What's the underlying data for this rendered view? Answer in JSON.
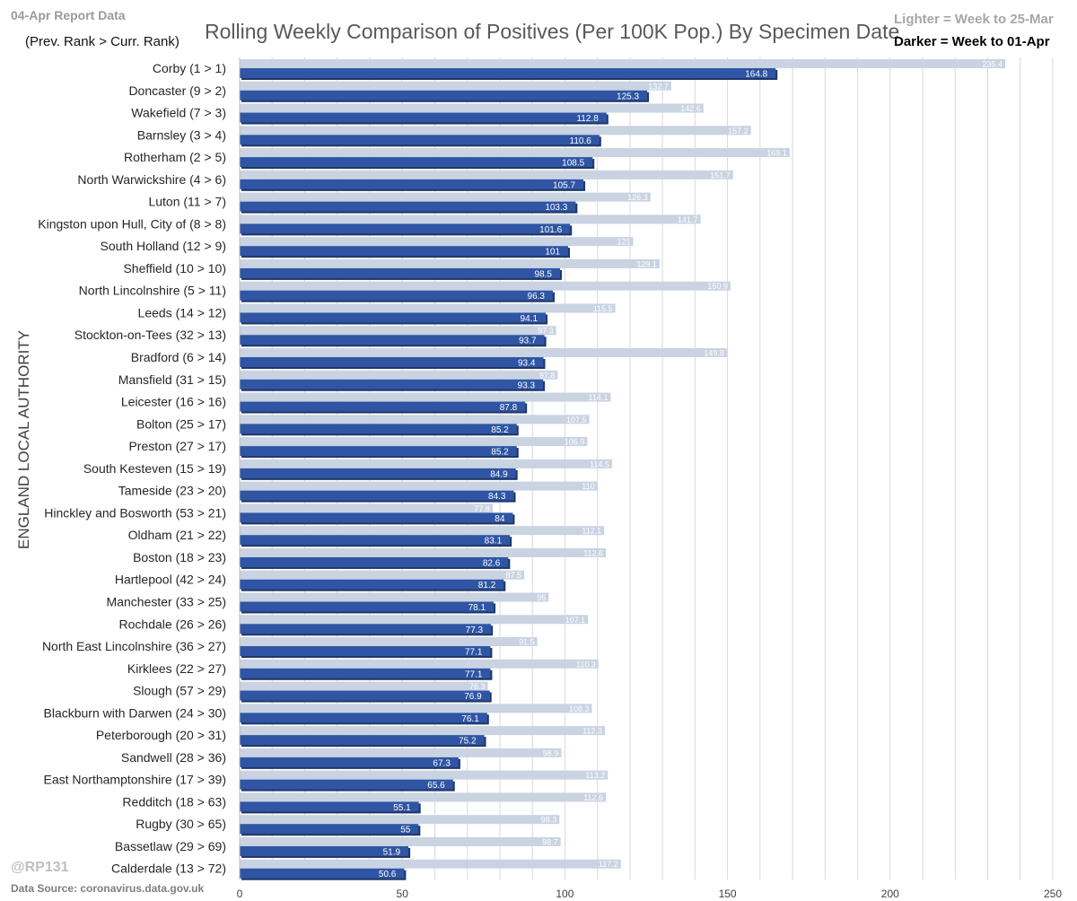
{
  "header": {
    "report_label": "04-Apr Report Data",
    "rank_note": "(Prev. Rank > Curr. Rank)",
    "legend_light": "Lighter = Week to 25-Mar",
    "legend_dark": "Darker = Week to 01-Apr"
  },
  "footer": {
    "watermark": "@RP131",
    "source": "Data Source: coronavirus.data.gov.uk"
  },
  "colors": {
    "light_bar": "#c9d3e2",
    "dark_bar": "#2f55a4",
    "light_label": "#ffffff",
    "dark_label": "#ffffff",
    "grid": "#d9d9d9"
  },
  "chart_data": {
    "type": "bar",
    "orientation": "horizontal",
    "title": "Rolling Weekly Comparison of Positives  (Per 100K Pop.) By Specimen Date",
    "xlabel": "",
    "ylabel": "ENGLAND LOCAL AUTHORITY",
    "xlim": [
      0,
      250
    ],
    "xticks": [
      0,
      50,
      100,
      150,
      200,
      250
    ],
    "grid": true,
    "categories": [
      "Corby (1 > 1)",
      "Doncaster (9 > 2)",
      "Wakefield (7 > 3)",
      "Barnsley (3 > 4)",
      "Rotherham (2 > 5)",
      "North Warwickshire (4 > 6)",
      "Luton (11 > 7)",
      "Kingston upon Hull, City of (8 > 8)",
      "South Holland (12 > 9)",
      "Sheffield (10 > 10)",
      "North Lincolnshire (5 > 11)",
      "Leeds (14 > 12)",
      "Stockton-on-Tees (32 > 13)",
      "Bradford (6 > 14)",
      "Mansfield (31 > 15)",
      "Leicester (16 > 16)",
      "Bolton (25 > 17)",
      "Preston (27 > 17)",
      "South Kesteven (15 > 19)",
      "Tameside (23 > 20)",
      "Hinckley and Bosworth (53 > 21)",
      "Oldham (21 > 22)",
      "Boston (18 > 23)",
      "Hartlepool (42 > 24)",
      "Manchester (33 > 25)",
      "Rochdale (26 > 26)",
      "North East Lincolnshire (36 > 27)",
      "Kirklees (22 > 27)",
      "Slough (57 > 29)",
      "Blackburn with Darwen (24 > 30)",
      "Peterborough (20 > 31)",
      "Sandwell (28 > 36)",
      "East Northamptonshire (17 > 39)",
      "Redditch (18 > 63)",
      "Rugby (30 > 65)",
      "Bassetlaw (29 > 69)",
      "Calderdale (13 > 72)"
    ],
    "series": [
      {
        "name": "Week to 25-Mar",
        "values": [
          235.4,
          132.7,
          142.6,
          157.2,
          169.1,
          151.7,
          126.3,
          141.7,
          121,
          129.1,
          150.9,
          115.5,
          97.3,
          149.8,
          97.8,
          114.1,
          107.5,
          106.9,
          114.5,
          110,
          77.8,
          112.1,
          112.6,
          87.5,
          95,
          107.1,
          91.5,
          110.3,
          76.3,
          108.3,
          112.3,
          98.9,
          113.2,
          112.6,
          98.3,
          98.7,
          117.2
        ]
      },
      {
        "name": "Week to 01-Apr",
        "values": [
          164.8,
          125.3,
          112.8,
          110.6,
          108.5,
          105.7,
          103.3,
          101.6,
          101,
          98.5,
          96.3,
          94.1,
          93.7,
          93.4,
          93.3,
          87.8,
          85.2,
          85.2,
          84.9,
          84.3,
          84,
          83.1,
          82.6,
          81.2,
          78.1,
          77.3,
          77.1,
          77.1,
          76.9,
          76.1,
          75.2,
          67.3,
          65.6,
          55.1,
          55,
          51.9,
          50.6
        ]
      }
    ]
  }
}
